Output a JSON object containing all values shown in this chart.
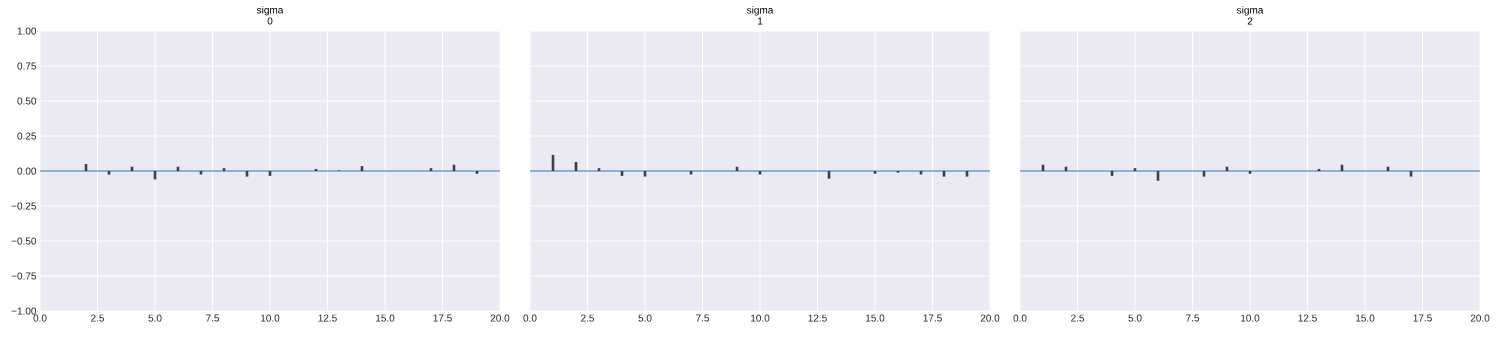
{
  "chart_data": [
    {
      "type": "bar",
      "title": "sigma",
      "subtitle": "0",
      "x": [
        2,
        3,
        4,
        5,
        6,
        7,
        8,
        9,
        10,
        11,
        12,
        13,
        14,
        15,
        16,
        17,
        18,
        19
      ],
      "values": [
        0.05,
        -0.026,
        0.03,
        -0.06,
        0.03,
        -0.025,
        0.02,
        -0.04,
        -0.035,
        null,
        0.015,
        0.005,
        0.035,
        null,
        null,
        0.02,
        0.045,
        -0.02
      ],
      "color": "#3f3f3f",
      "xlim": [
        0,
        20
      ],
      "ylim": [
        -1,
        1
      ],
      "xticks": [
        {
          "value": 0,
          "label": "0.0"
        },
        {
          "value": 2.5,
          "label": "2.5"
        },
        {
          "value": 5,
          "label": "5.0"
        },
        {
          "value": 7.5,
          "label": "7.5"
        },
        {
          "value": 10,
          "label": "10.0"
        },
        {
          "value": 12.5,
          "label": "12.5"
        },
        {
          "value": 15,
          "label": "15.0"
        },
        {
          "value": 17.5,
          "label": "17.5"
        },
        {
          "value": 20,
          "label": "20.0"
        }
      ],
      "yticks": [
        {
          "value": -1,
          "label": "−1.00"
        },
        {
          "value": -0.75,
          "label": "−0.75"
        },
        {
          "value": -0.5,
          "label": "−0.50"
        },
        {
          "value": -0.25,
          "label": "−0.25"
        },
        {
          "value": 0,
          "label": "0.00"
        },
        {
          "value": 0.25,
          "label": "0.25"
        },
        {
          "value": 0.5,
          "label": "0.50"
        },
        {
          "value": 0.75,
          "label": "0.75"
        },
        {
          "value": 1,
          "label": "1.00"
        }
      ],
      "ref_lines": [
        {
          "axis": "y",
          "value": 0,
          "color": "#6a9bc9"
        }
      ],
      "grid": true
    },
    {
      "type": "bar",
      "title": "sigma",
      "subtitle": "1",
      "x": [
        1,
        2,
        3,
        4,
        5,
        6,
        7,
        8,
        9,
        10,
        11,
        12,
        13,
        14,
        15,
        16,
        17,
        18,
        19
      ],
      "values": [
        0.115,
        0.065,
        0.02,
        -0.035,
        -0.04,
        null,
        -0.025,
        null,
        0.03,
        -0.025,
        null,
        null,
        -0.055,
        null,
        -0.02,
        -0.012,
        -0.025,
        -0.04,
        -0.04
      ],
      "color": "#3f3f3f",
      "xlim": [
        0,
        20
      ],
      "ylim": [
        -1,
        1
      ],
      "xticks": [
        {
          "value": 0,
          "label": "0.0"
        },
        {
          "value": 2.5,
          "label": "2.5"
        },
        {
          "value": 5,
          "label": "5.0"
        },
        {
          "value": 7.5,
          "label": "7.5"
        },
        {
          "value": 10,
          "label": "10.0"
        },
        {
          "value": 12.5,
          "label": "12.5"
        },
        {
          "value": 15,
          "label": "15.0"
        },
        {
          "value": 17.5,
          "label": "17.5"
        },
        {
          "value": 20,
          "label": "20.0"
        }
      ],
      "yticks": [
        {
          "value": -1,
          "label": null
        },
        {
          "value": -0.75,
          "label": null
        },
        {
          "value": -0.5,
          "label": null
        },
        {
          "value": -0.25,
          "label": null
        },
        {
          "value": 0,
          "label": null
        },
        {
          "value": 0.25,
          "label": null
        },
        {
          "value": 0.5,
          "label": null
        },
        {
          "value": 0.75,
          "label": null
        },
        {
          "value": 1,
          "label": null
        }
      ],
      "ref_lines": [
        {
          "axis": "y",
          "value": 0,
          "color": "#6a9bc9"
        }
      ],
      "tick_labels": "x",
      "grid": true
    },
    {
      "type": "bar",
      "title": "sigma",
      "subtitle": "2",
      "x": [
        1,
        2,
        3,
        4,
        5,
        6,
        7,
        8,
        9,
        10,
        11,
        12,
        13,
        14,
        15,
        16,
        17
      ],
      "values": [
        0.045,
        0.03,
        null,
        -0.035,
        0.02,
        -0.07,
        null,
        -0.04,
        0.03,
        -0.02,
        null,
        null,
        0.015,
        0.045,
        null,
        0.03,
        -0.04
      ],
      "color": "#3f3f3f",
      "xlim": [
        0,
        20
      ],
      "ylim": [
        -1,
        1
      ],
      "xticks": [
        {
          "value": 0,
          "label": "0.0"
        },
        {
          "value": 2.5,
          "label": "2.5"
        },
        {
          "value": 5,
          "label": "5.0"
        },
        {
          "value": 7.5,
          "label": "7.5"
        },
        {
          "value": 10,
          "label": "10.0"
        },
        {
          "value": 12.5,
          "label": "12.5"
        },
        {
          "value": 15,
          "label": "15.0"
        },
        {
          "value": 17.5,
          "label": "17.5"
        },
        {
          "value": 20,
          "label": "20.0"
        }
      ],
      "yticks": [
        {
          "value": -1,
          "label": null
        },
        {
          "value": -0.75,
          "label": null
        },
        {
          "value": -0.5,
          "label": null
        },
        {
          "value": -0.25,
          "label": null
        },
        {
          "value": 0,
          "label": null
        },
        {
          "value": 0.25,
          "label": null
        },
        {
          "value": 0.5,
          "label": null
        },
        {
          "value": 0.75,
          "label": null
        },
        {
          "value": 1,
          "label": null
        }
      ],
      "ref_lines": [
        {
          "axis": "y",
          "value": 0,
          "color": "#6a9bc9"
        }
      ],
      "tick_labels": "x",
      "grid": true
    }
  ]
}
